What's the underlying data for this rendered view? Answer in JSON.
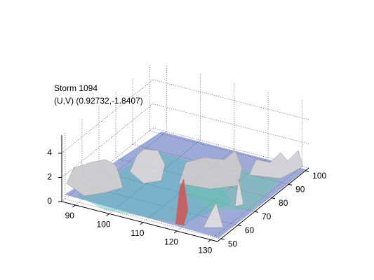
{
  "chart_data": {
    "type": "surface3d",
    "title": [
      "Storm 1094",
      "(U,V) (0.92732,-1.8407)"
    ],
    "xlim": [
      86,
      132
    ],
    "xticks": [
      90,
      100,
      110,
      120,
      130
    ],
    "ylim": [
      48,
      102
    ],
    "yticks": [
      50,
      60,
      70,
      80,
      90,
      100
    ],
    "zlim": [
      0,
      5.5
    ],
    "zticks": [
      0,
      2,
      4
    ],
    "grid": true
  }
}
